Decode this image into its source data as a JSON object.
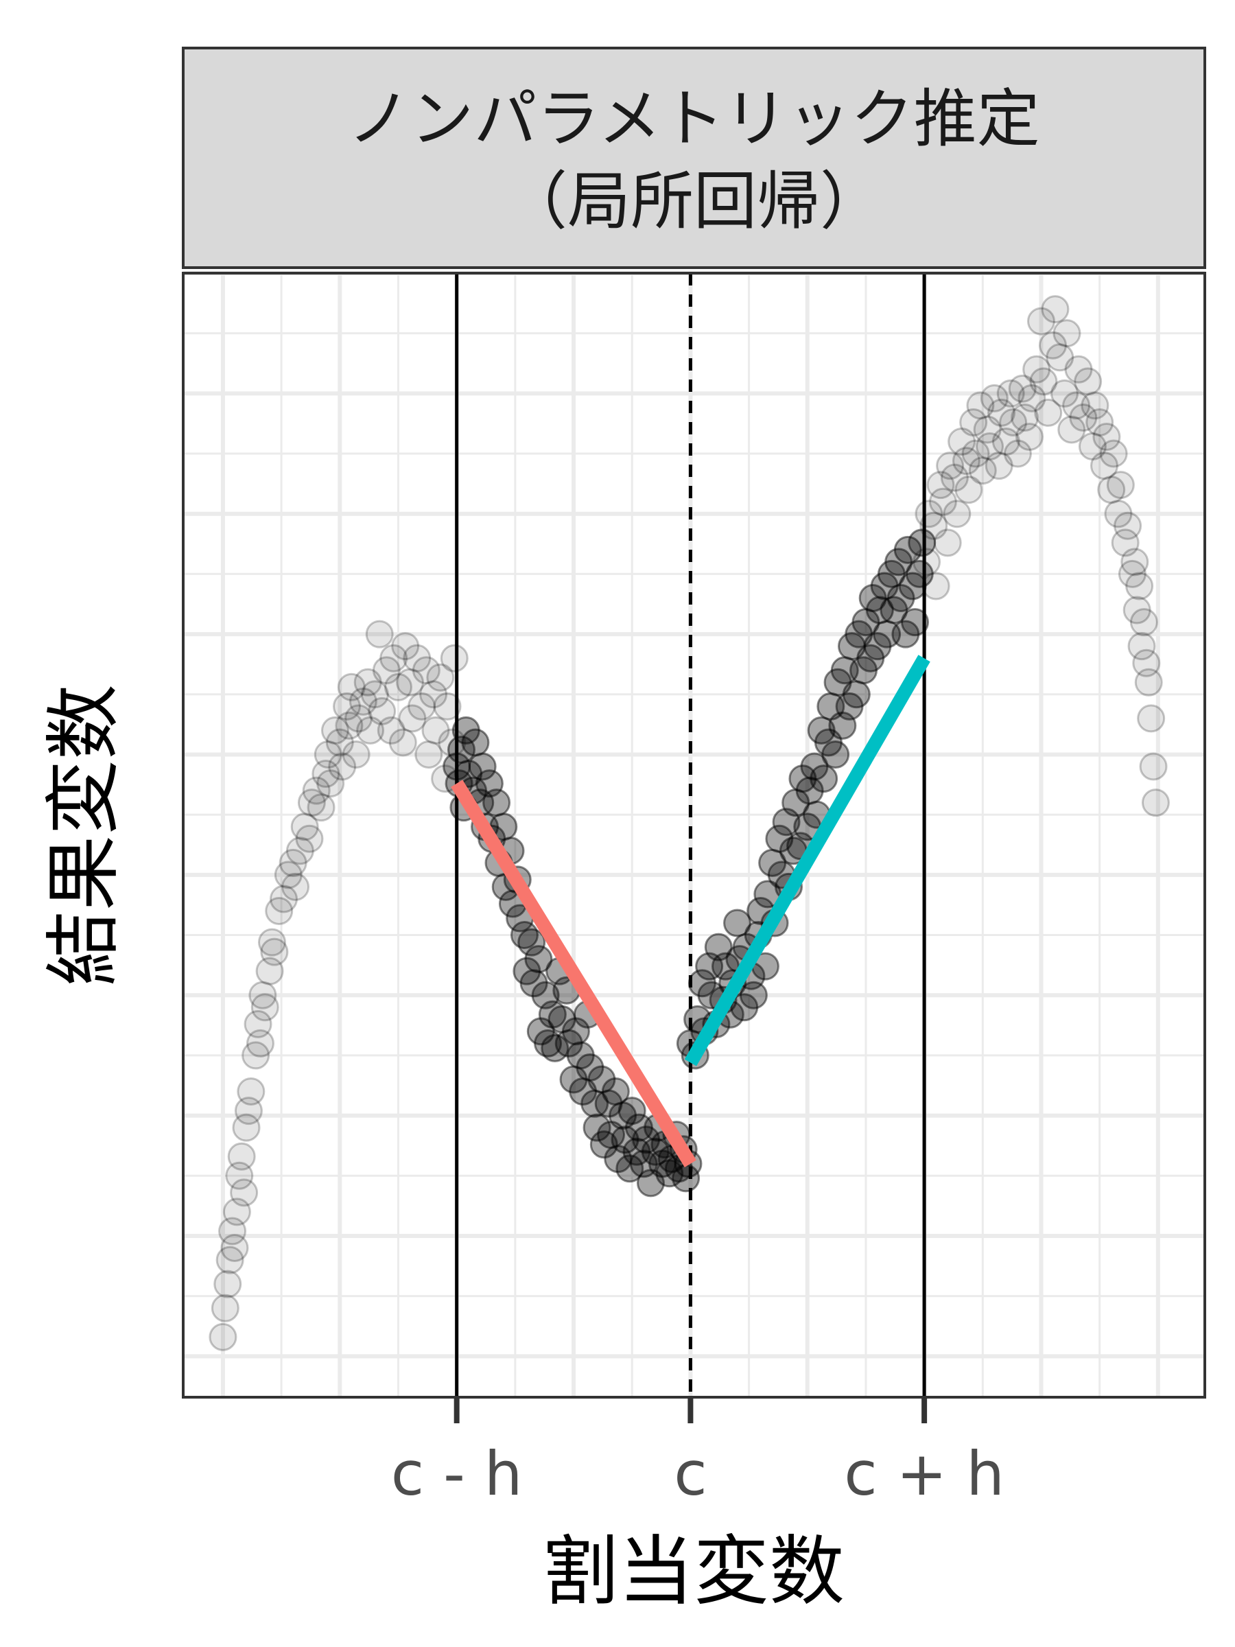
{
  "chart_data": {
    "type": "scatter",
    "panel_title_line1": "ノンパラメトリック推定",
    "panel_title_line2": "（局所回帰）",
    "xlabel": "割当変数",
    "ylabel": "結果変数",
    "xlim": [
      -2.17,
      2.2
    ],
    "ylim": [
      -0.17,
      4.5
    ],
    "x_ticks": [
      {
        "value": -1,
        "label": "c - h"
      },
      {
        "value": 0,
        "label": "c"
      },
      {
        "value": 1,
        "label": "c + h"
      }
    ],
    "grid": true,
    "legend": "none",
    "reference_lines": [
      {
        "x": -1,
        "style": "solid"
      },
      {
        "x": 0,
        "style": "dashed"
      },
      {
        "x": 1,
        "style": "solid"
      }
    ],
    "fits": [
      {
        "x": [
          -1,
          0
        ],
        "y": [
          2.38,
          0.8
        ],
        "color": "#F8766D"
      },
      {
        "x": [
          0,
          1
        ],
        "y": [
          1.22,
          2.9
        ],
        "color": "#00BFC4"
      }
    ],
    "points_within_bandwidth_opacity": 0.35,
    "points_outside_bandwidth_opacity": 0.1,
    "points": [
      [
        -2.0,
        0.08
      ],
      [
        -1.99,
        0.2
      ],
      [
        -1.98,
        0.3
      ],
      [
        -1.97,
        0.4
      ],
      [
        -1.96,
        0.52
      ],
      [
        -1.95,
        0.45
      ],
      [
        -1.94,
        0.6
      ],
      [
        -1.93,
        0.75
      ],
      [
        -1.92,
        0.83
      ],
      [
        -1.91,
        0.68
      ],
      [
        -1.9,
        0.95
      ],
      [
        -1.89,
        1.02
      ],
      [
        -1.88,
        1.1
      ],
      [
        -1.86,
        1.25
      ],
      [
        -1.85,
        1.38
      ],
      [
        -1.84,
        1.3
      ],
      [
        -1.83,
        1.5
      ],
      [
        -1.82,
        1.45
      ],
      [
        -1.8,
        1.6
      ],
      [
        -1.79,
        1.72
      ],
      [
        -1.78,
        1.68
      ],
      [
        -1.76,
        1.85
      ],
      [
        -1.74,
        1.9
      ],
      [
        -1.72,
        2.0
      ],
      [
        -1.7,
        2.05
      ],
      [
        -1.69,
        1.95
      ],
      [
        -1.67,
        2.1
      ],
      [
        -1.65,
        2.2
      ],
      [
        -1.63,
        2.15
      ],
      [
        -1.62,
        2.3
      ],
      [
        -1.6,
        2.35
      ],
      [
        -1.58,
        2.28
      ],
      [
        -1.56,
        2.42
      ],
      [
        -1.55,
        2.5
      ],
      [
        -1.54,
        2.38
      ],
      [
        -1.52,
        2.6
      ],
      [
        -1.5,
        2.55
      ],
      [
        -1.49,
        2.45
      ],
      [
        -1.47,
        2.7
      ],
      [
        -1.46,
        2.62
      ],
      [
        -1.45,
        2.78
      ],
      [
        -1.43,
        2.5
      ],
      [
        -1.42,
        2.65
      ],
      [
        -1.4,
        2.72
      ],
      [
        -1.38,
        2.8
      ],
      [
        -1.37,
        2.6
      ],
      [
        -1.35,
        2.75
      ],
      [
        -1.33,
        3.0
      ],
      [
        -1.32,
        2.68
      ],
      [
        -1.3,
        2.85
      ],
      [
        -1.28,
        2.6
      ],
      [
        -1.27,
        2.9
      ],
      [
        -1.25,
        2.78
      ],
      [
        -1.23,
        2.55
      ],
      [
        -1.22,
        2.95
      ],
      [
        -1.2,
        2.8
      ],
      [
        -1.19,
        2.65
      ],
      [
        -1.17,
        2.9
      ],
      [
        -1.15,
        2.7
      ],
      [
        -1.13,
        2.85
      ],
      [
        -1.12,
        2.5
      ],
      [
        -1.1,
        2.75
      ],
      [
        -1.09,
        2.6
      ],
      [
        -1.07,
        2.82
      ],
      [
        -1.05,
        2.4
      ],
      [
        -1.04,
        2.7
      ],
      [
        -1.02,
        2.55
      ],
      [
        -1.01,
        2.9
      ],
      [
        -1.0,
        2.45
      ],
      [
        -0.99,
        2.38
      ],
      [
        -0.98,
        2.52
      ],
      [
        -0.97,
        2.28
      ],
      [
        -0.96,
        2.6
      ],
      [
        -0.95,
        2.42
      ],
      [
        -0.93,
        2.35
      ],
      [
        -0.92,
        2.55
      ],
      [
        -0.9,
        2.3
      ],
      [
        -0.89,
        2.45
      ],
      [
        -0.88,
        2.2
      ],
      [
        -0.86,
        2.38
      ],
      [
        -0.85,
        2.15
      ],
      [
        -0.83,
        2.3
      ],
      [
        -0.82,
        2.05
      ],
      [
        -0.8,
        2.2
      ],
      [
        -0.79,
        1.95
      ],
      [
        -0.77,
        2.1
      ],
      [
        -0.76,
        1.88
      ],
      [
        -0.74,
        1.98
      ],
      [
        -0.73,
        1.82
      ],
      [
        -0.71,
        1.75
      ],
      [
        -0.7,
        1.6
      ],
      [
        -0.68,
        1.72
      ],
      [
        -0.67,
        1.55
      ],
      [
        -0.65,
        1.65
      ],
      [
        -0.64,
        1.35
      ],
      [
        -0.62,
        1.5
      ],
      [
        -0.61,
        1.3
      ],
      [
        -0.59,
        1.42
      ],
      [
        -0.58,
        1.28
      ],
      [
        -0.56,
        1.6
      ],
      [
        -0.55,
        1.4
      ],
      [
        -0.53,
        1.52
      ],
      [
        -0.52,
        1.3
      ],
      [
        -0.5,
        1.15
      ],
      [
        -0.49,
        1.35
      ],
      [
        -0.47,
        1.25
      ],
      [
        -0.46,
        1.1
      ],
      [
        -0.44,
        1.42
      ],
      [
        -0.43,
        1.2
      ],
      [
        -0.41,
        1.05
      ],
      [
        -0.4,
        0.95
      ],
      [
        -0.38,
        1.15
      ],
      [
        -0.37,
        0.88
      ],
      [
        -0.35,
        1.05
      ],
      [
        -0.34,
        0.92
      ],
      [
        -0.32,
        1.1
      ],
      [
        -0.31,
        0.82
      ],
      [
        -0.29,
        1.0
      ],
      [
        -0.28,
        0.9
      ],
      [
        -0.26,
        0.78
      ],
      [
        -0.25,
        1.02
      ],
      [
        -0.23,
        0.85
      ],
      [
        -0.22,
        0.95
      ],
      [
        -0.2,
        0.8
      ],
      [
        -0.19,
        0.9
      ],
      [
        -0.17,
        0.72
      ],
      [
        -0.15,
        0.85
      ],
      [
        -0.14,
        0.95
      ],
      [
        -0.12,
        0.8
      ],
      [
        -0.11,
        0.88
      ],
      [
        -0.09,
        0.76
      ],
      [
        -0.08,
        0.82
      ],
      [
        -0.06,
        0.92
      ],
      [
        -0.05,
        0.78
      ],
      [
        -0.03,
        0.86
      ],
      [
        -0.02,
        0.74
      ],
      [
        -0.01,
        0.8
      ],
      [
        0.0,
        1.3
      ],
      [
        0.02,
        1.25
      ],
      [
        0.03,
        1.4
      ],
      [
        0.05,
        1.55
      ],
      [
        0.06,
        1.35
      ],
      [
        0.08,
        1.62
      ],
      [
        0.09,
        1.5
      ],
      [
        0.11,
        1.38
      ],
      [
        0.12,
        1.7
      ],
      [
        0.14,
        1.48
      ],
      [
        0.15,
        1.62
      ],
      [
        0.17,
        1.42
      ],
      [
        0.18,
        1.55
      ],
      [
        0.2,
        1.8
      ],
      [
        0.21,
        1.65
      ],
      [
        0.23,
        1.45
      ],
      [
        0.24,
        1.7
      ],
      [
        0.26,
        1.58
      ],
      [
        0.27,
        1.5
      ],
      [
        0.29,
        1.75
      ],
      [
        0.3,
        1.85
      ],
      [
        0.32,
        1.62
      ],
      [
        0.33,
        1.92
      ],
      [
        0.35,
        2.05
      ],
      [
        0.36,
        1.8
      ],
      [
        0.38,
        2.15
      ],
      [
        0.39,
        2.0
      ],
      [
        0.41,
        2.22
      ],
      [
        0.42,
        1.95
      ],
      [
        0.44,
        2.1
      ],
      [
        0.45,
        2.3
      ],
      [
        0.47,
        2.12
      ],
      [
        0.48,
        2.4
      ],
      [
        0.5,
        2.2
      ],
      [
        0.51,
        2.35
      ],
      [
        0.53,
        2.45
      ],
      [
        0.54,
        2.25
      ],
      [
        0.56,
        2.6
      ],
      [
        0.57,
        2.4
      ],
      [
        0.59,
        2.55
      ],
      [
        0.6,
        2.7
      ],
      [
        0.62,
        2.5
      ],
      [
        0.63,
        2.8
      ],
      [
        0.65,
        2.62
      ],
      [
        0.66,
        2.85
      ],
      [
        0.68,
        2.7
      ],
      [
        0.69,
        2.95
      ],
      [
        0.71,
        2.75
      ],
      [
        0.72,
        3.0
      ],
      [
        0.74,
        2.85
      ],
      [
        0.75,
        3.05
      ],
      [
        0.77,
        2.9
      ],
      [
        0.78,
        3.15
      ],
      [
        0.8,
        2.95
      ],
      [
        0.81,
        3.1
      ],
      [
        0.83,
        3.2
      ],
      [
        0.84,
        3.0
      ],
      [
        0.86,
        3.25
      ],
      [
        0.87,
        3.1
      ],
      [
        0.89,
        3.3
      ],
      [
        0.9,
        3.15
      ],
      [
        0.92,
        3.0
      ],
      [
        0.93,
        3.35
      ],
      [
        0.95,
        3.2
      ],
      [
        0.96,
        3.05
      ],
      [
        0.98,
        3.25
      ],
      [
        0.99,
        3.38
      ],
      [
        1.01,
        3.3
      ],
      [
        1.02,
        3.5
      ],
      [
        1.04,
        3.45
      ],
      [
        1.05,
        3.2
      ],
      [
        1.07,
        3.62
      ],
      [
        1.08,
        3.55
      ],
      [
        1.1,
        3.38
      ],
      [
        1.11,
        3.7
      ],
      [
        1.13,
        3.65
      ],
      [
        1.14,
        3.5
      ],
      [
        1.16,
        3.8
      ],
      [
        1.18,
        3.72
      ],
      [
        1.19,
        3.6
      ],
      [
        1.21,
        3.88
      ],
      [
        1.22,
        3.75
      ],
      [
        1.24,
        3.95
      ],
      [
        1.25,
        3.68
      ],
      [
        1.27,
        3.85
      ],
      [
        1.28,
        3.78
      ],
      [
        1.3,
        3.98
      ],
      [
        1.32,
        3.7
      ],
      [
        1.33,
        3.92
      ],
      [
        1.35,
        3.8
      ],
      [
        1.37,
        4.0
      ],
      [
        1.38,
        3.88
      ],
      [
        1.4,
        3.75
      ],
      [
        1.42,
        4.02
      ],
      [
        1.43,
        3.9
      ],
      [
        1.45,
        3.82
      ],
      [
        1.46,
        3.98
      ],
      [
        1.48,
        4.1
      ],
      [
        1.5,
        4.3
      ],
      [
        1.51,
        4.05
      ],
      [
        1.53,
        3.92
      ],
      [
        1.55,
        4.2
      ],
      [
        1.56,
        4.35
      ],
      [
        1.58,
        4.15
      ],
      [
        1.6,
        4.0
      ],
      [
        1.61,
        4.25
      ],
      [
        1.63,
        3.85
      ],
      [
        1.65,
        3.95
      ],
      [
        1.66,
        4.1
      ],
      [
        1.68,
        3.9
      ],
      [
        1.7,
        4.05
      ],
      [
        1.72,
        3.78
      ],
      [
        1.73,
        3.95
      ],
      [
        1.75,
        3.88
      ],
      [
        1.77,
        3.7
      ],
      [
        1.78,
        3.82
      ],
      [
        1.8,
        3.6
      ],
      [
        1.81,
        3.75
      ],
      [
        1.83,
        3.5
      ],
      [
        1.84,
        3.62
      ],
      [
        1.86,
        3.38
      ],
      [
        1.87,
        3.45
      ],
      [
        1.89,
        3.25
      ],
      [
        1.9,
        3.3
      ],
      [
        1.91,
        3.1
      ],
      [
        1.92,
        3.2
      ],
      [
        1.93,
        2.95
      ],
      [
        1.94,
        3.05
      ],
      [
        1.95,
        2.88
      ],
      [
        1.96,
        2.8
      ],
      [
        1.97,
        2.65
      ],
      [
        1.98,
        2.45
      ],
      [
        1.99,
        2.3
      ]
    ]
  }
}
